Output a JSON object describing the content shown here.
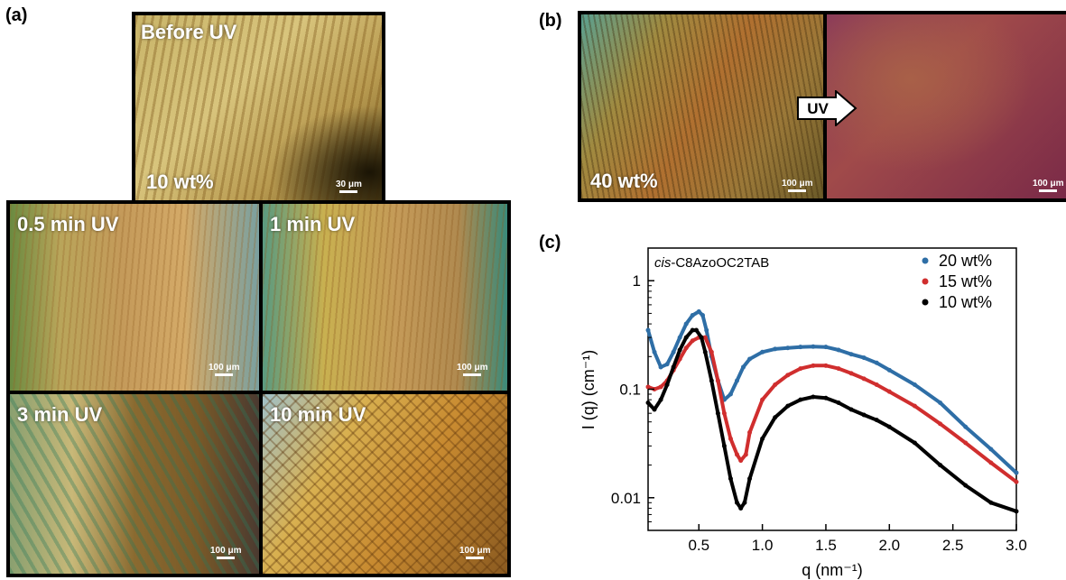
{
  "labels": {
    "a": "(a)",
    "b": "(b)",
    "c": "(c)"
  },
  "panel_a": {
    "tiles": [
      {
        "caption": "Before UV",
        "wt": "10 wt%",
        "scale": "30 μm"
      },
      {
        "caption": "0.5 min UV",
        "scale": "100 μm"
      },
      {
        "caption": "1 min UV",
        "scale": "100 μm"
      },
      {
        "caption": "3 min UV",
        "scale": "100 μm"
      },
      {
        "caption": "10 min UV",
        "scale": "100 μm"
      }
    ]
  },
  "panel_b": {
    "wt": "40 wt%",
    "arrow": "UV",
    "scale_left": "100 μm",
    "scale_right": "100 μm"
  },
  "chart_data": {
    "type": "scatter",
    "annotation": {
      "prefix": "cis",
      "text": "-C8AzoOC2TAB"
    },
    "xlabel": "q (nm⁻¹)",
    "ylabel": "I (q) (cm⁻¹)",
    "xlim": [
      0.1,
      3.0
    ],
    "ylim": [
      0.005,
      2.0
    ],
    "yscale": "log",
    "xticks": [
      0.5,
      1.0,
      1.5,
      2.0,
      2.5,
      3.0
    ],
    "xtick_labels": [
      "0.5",
      "1.0",
      "1.5",
      "2.0",
      "2.5",
      "3.0"
    ],
    "yticks": [
      1,
      0.1,
      0.01
    ],
    "ytick_labels": [
      "1",
      "0.1",
      "0.01"
    ],
    "legend_position": "top-right",
    "series": [
      {
        "name": "20 wt%",
        "color": "#2e6ea6",
        "x": [
          0.1,
          0.15,
          0.2,
          0.25,
          0.3,
          0.35,
          0.4,
          0.45,
          0.5,
          0.53,
          0.56,
          0.6,
          0.65,
          0.7,
          0.75,
          0.8,
          0.85,
          0.9,
          1.0,
          1.1,
          1.2,
          1.3,
          1.4,
          1.5,
          1.6,
          1.7,
          1.8,
          1.9,
          2.0,
          2.2,
          2.4,
          2.6,
          2.8,
          3.0
        ],
        "y": [
          0.35,
          0.22,
          0.16,
          0.17,
          0.22,
          0.3,
          0.4,
          0.48,
          0.52,
          0.48,
          0.35,
          0.2,
          0.12,
          0.08,
          0.09,
          0.12,
          0.16,
          0.19,
          0.22,
          0.235,
          0.24,
          0.245,
          0.247,
          0.245,
          0.23,
          0.21,
          0.195,
          0.175,
          0.15,
          0.11,
          0.075,
          0.045,
          0.028,
          0.017
        ]
      },
      {
        "name": "15 wt%",
        "color": "#d02e2e",
        "x": [
          0.1,
          0.15,
          0.2,
          0.25,
          0.3,
          0.35,
          0.4,
          0.45,
          0.5,
          0.55,
          0.6,
          0.65,
          0.7,
          0.75,
          0.8,
          0.83,
          0.87,
          0.9,
          1.0,
          1.1,
          1.2,
          1.3,
          1.4,
          1.5,
          1.6,
          1.7,
          1.8,
          1.9,
          2.0,
          2.2,
          2.4,
          2.6,
          2.8,
          3.0
        ],
        "y": [
          0.105,
          0.1,
          0.105,
          0.12,
          0.15,
          0.19,
          0.24,
          0.28,
          0.3,
          0.3,
          0.22,
          0.12,
          0.06,
          0.035,
          0.025,
          0.022,
          0.025,
          0.04,
          0.08,
          0.11,
          0.135,
          0.155,
          0.165,
          0.165,
          0.155,
          0.14,
          0.125,
          0.11,
          0.095,
          0.07,
          0.048,
          0.032,
          0.021,
          0.014
        ]
      },
      {
        "name": "10 wt%",
        "color": "#000000",
        "x": [
          0.1,
          0.15,
          0.2,
          0.25,
          0.3,
          0.35,
          0.4,
          0.45,
          0.48,
          0.52,
          0.55,
          0.6,
          0.65,
          0.7,
          0.75,
          0.8,
          0.83,
          0.86,
          0.9,
          1.0,
          1.1,
          1.2,
          1.3,
          1.4,
          1.5,
          1.6,
          1.7,
          1.8,
          1.9,
          2.0,
          2.2,
          2.4,
          2.6,
          2.8,
          3.0
        ],
        "y": [
          0.075,
          0.065,
          0.08,
          0.11,
          0.16,
          0.23,
          0.3,
          0.35,
          0.35,
          0.3,
          0.22,
          0.12,
          0.06,
          0.03,
          0.015,
          0.009,
          0.008,
          0.009,
          0.015,
          0.035,
          0.055,
          0.07,
          0.08,
          0.085,
          0.083,
          0.075,
          0.065,
          0.058,
          0.052,
          0.045,
          0.032,
          0.02,
          0.013,
          0.009,
          0.0075
        ]
      }
    ]
  }
}
